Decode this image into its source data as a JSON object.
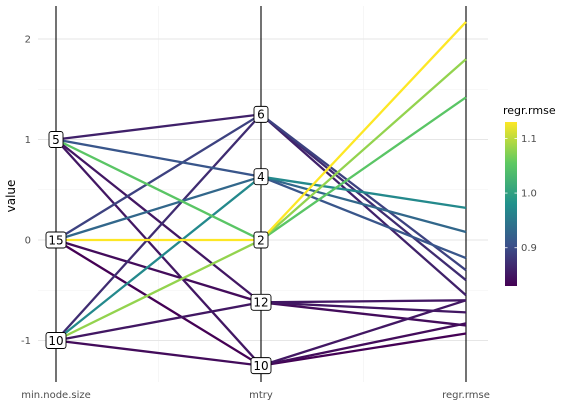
{
  "chart_data": {
    "type": "parallel-coordinates",
    "ylabel": "value",
    "axes": [
      "min.node.size",
      "mtry",
      "regr.rmse"
    ],
    "y_ticks": [
      -1,
      0,
      1,
      2
    ],
    "ylim": [
      -1.35,
      2.35
    ],
    "grid": true,
    "colorbar": {
      "title": "regr.rmse",
      "ticks": [
        "0.9",
        "1.0",
        "1.1"
      ],
      "tick_values": [
        0.9,
        1.0,
        1.1
      ],
      "range": [
        0.83,
        1.13
      ],
      "colors": [
        "#440154",
        "#3b528b",
        "#21918c",
        "#5ec962",
        "#fde725"
      ]
    },
    "node_labels": {
      "min.node.size": [
        {
          "label": "5",
          "value": 1.0
        },
        {
          "label": "15",
          "value": 0.0
        },
        {
          "label": "10",
          "value": -1.0
        }
      ],
      "mtry": [
        {
          "label": "6",
          "value": 1.25
        },
        {
          "label": "4",
          "value": 0.63
        },
        {
          "label": "2",
          "value": 0.0
        },
        {
          "label": "12",
          "value": -0.62
        },
        {
          "label": "10",
          "value": -1.25
        }
      ]
    },
    "lines": [
      {
        "values": [
          0.0,
          0.0,
          2.17
        ],
        "color": 1.13
      },
      {
        "values": [
          -1.0,
          0.0,
          1.8
        ],
        "color": 1.08
      },
      {
        "values": [
          1.0,
          0.0,
          1.42
        ],
        "color": 1.05
      },
      {
        "values": [
          -1.0,
          0.63,
          0.32
        ],
        "color": 0.97
      },
      {
        "values": [
          0.0,
          0.63,
          0.08
        ],
        "color": 0.93
      },
      {
        "values": [
          1.0,
          0.63,
          -0.18
        ],
        "color": 0.91
      },
      {
        "values": [
          0.0,
          1.25,
          -0.3
        ],
        "color": 0.89
      },
      {
        "values": [
          -1.0,
          1.25,
          -0.4
        ],
        "color": 0.87
      },
      {
        "values": [
          1.0,
          1.25,
          -0.55
        ],
        "color": 0.86
      },
      {
        "values": [
          1.0,
          -0.62,
          -0.6
        ],
        "color": 0.85
      },
      {
        "values": [
          -1.0,
          -0.62,
          -0.72
        ],
        "color": 0.85
      },
      {
        "values": [
          0.0,
          -0.62,
          -0.85
        ],
        "color": 0.84
      },
      {
        "values": [
          1.0,
          -1.25,
          -0.6
        ],
        "color": 0.85
      },
      {
        "values": [
          -1.0,
          -1.25,
          -0.83
        ],
        "color": 0.84
      },
      {
        "values": [
          0.0,
          -1.25,
          -0.93
        ],
        "color": 0.83
      }
    ]
  }
}
